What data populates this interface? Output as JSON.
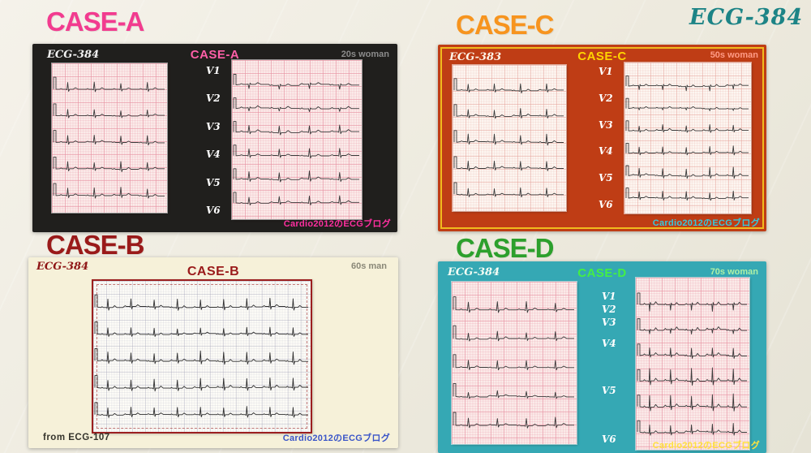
{
  "page": {
    "title": "ECG-384"
  },
  "colors": {
    "case_a": "#f23b8f",
    "case_b": "#9a1a1a",
    "case_c": "#f7941e",
    "case_d": "#2ca02c",
    "title": "#1d8486",
    "panel_a_bg": "#201f1d",
    "panel_b_bg": "#f6f1d9",
    "panel_c_bg": "#bf3d15",
    "panel_d_bg": "#35a8b4"
  },
  "cases": {
    "a": {
      "heading": "CASE-A",
      "ecg_id": "ECG-384",
      "case_label": "CASE-A",
      "patient": "20s woman",
      "credit": "Cardio2012のECGブログ",
      "leads": [
        "V1",
        "V2",
        "V3",
        "V4",
        "V5",
        "V6"
      ]
    },
    "c": {
      "heading": "CASE-C",
      "ecg_id": "ECG-383",
      "case_label": "CASE-C",
      "patient": "50s woman",
      "credit": "Cardio2012のECGブログ",
      "leads": [
        "V1",
        "V2",
        "V3",
        "V4",
        "V5",
        "V6"
      ]
    },
    "b": {
      "heading": "CASE-B",
      "ecg_id": "ECG-384",
      "case_label": "CASE-B",
      "patient": "60s man",
      "source": "from ECG-107",
      "credit": "Cardio2012のECGブログ"
    },
    "d": {
      "heading": "CASE-D",
      "ecg_id": "ECG-384",
      "case_label": "CASE-D",
      "patient": "70s woman",
      "credit": "Cardio2012のECGブログ",
      "leads": [
        "V1",
        "V2",
        "V3",
        "V4",
        "V5",
        "V6"
      ]
    }
  }
}
